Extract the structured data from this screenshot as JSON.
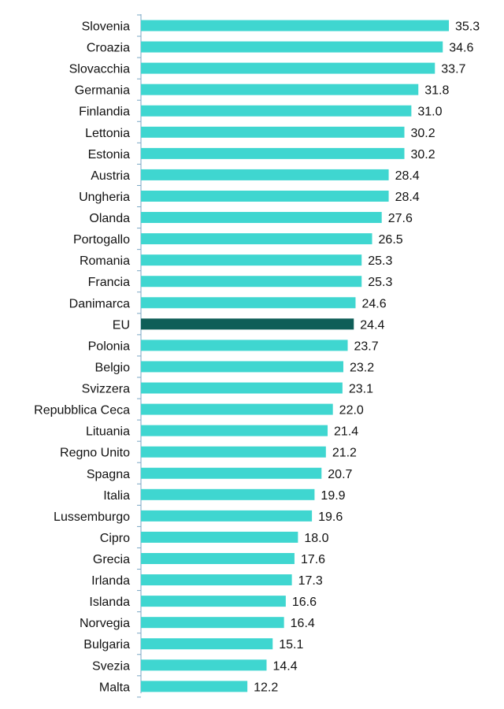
{
  "chart_data": {
    "type": "bar",
    "orientation": "horizontal",
    "categories": [
      "Slovenia",
      "Croazia",
      "Slovacchia",
      "Germania",
      "Finlandia",
      "Lettonia",
      "Estonia",
      "Austria",
      "Ungheria",
      "Olanda",
      "Portogallo",
      "Romania",
      "Francia",
      "Danimarca",
      "EU",
      "Polonia",
      "Belgio",
      "Svizzera",
      "Repubblica Ceca",
      "Lituania",
      "Regno Unito",
      "Spagna",
      "Italia",
      "Lussemburgo",
      "Cipro",
      "Grecia",
      "Irlanda",
      "Islanda",
      "Norvegia",
      "Bulgaria",
      "Svezia",
      "Malta"
    ],
    "values": [
      35.3,
      34.6,
      33.7,
      31.8,
      31.0,
      30.2,
      30.2,
      28.4,
      28.4,
      27.6,
      26.5,
      25.3,
      25.3,
      24.6,
      24.4,
      23.7,
      23.2,
      23.1,
      22.0,
      21.4,
      21.2,
      20.7,
      19.9,
      19.6,
      18.0,
      17.6,
      17.3,
      16.6,
      16.4,
      15.1,
      14.4,
      12.2
    ],
    "value_labels": [
      "35.3",
      "34.6",
      "33.7",
      "31.8",
      "31.0",
      "30.2",
      "30.2",
      "28.4",
      "28.4",
      "27.6",
      "26.5",
      "25.3",
      "25.3",
      "24.6",
      "24.4",
      "23.7",
      "23.2",
      "23.1",
      "22.0",
      "21.4",
      "21.2",
      "20.7",
      "19.9",
      "19.6",
      "18.0",
      "17.6",
      "17.3",
      "16.6",
      "16.4",
      "15.1",
      "14.4",
      "12.2"
    ],
    "highlight_category": "EU",
    "xlim": [
      0,
      36
    ],
    "grid": false,
    "legend": "none",
    "title": "",
    "xlabel": "",
    "ylabel": ""
  },
  "colors": {
    "bar": "#3fd6d0",
    "highlight_bar": "#0f5e58",
    "axis": "#7aa7c4",
    "text": "#111111"
  }
}
